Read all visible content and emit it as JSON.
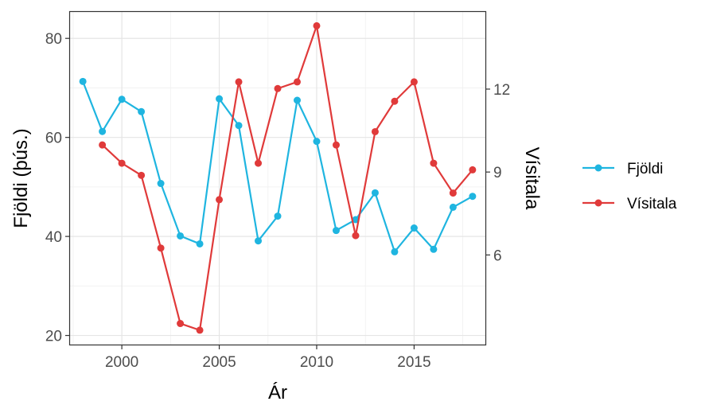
{
  "chart_data": {
    "type": "line",
    "xlabel": "Ár",
    "ylabel_left": "Fjöldi (þús.)",
    "ylabel_right": "Vísitala",
    "xlim": [
      1997.3,
      2018.7
    ],
    "ylim_left": [
      18,
      85.5
    ],
    "ylim_right": [
      2.73,
      14.82
    ],
    "x_ticks": [
      2000,
      2005,
      2010,
      2015
    ],
    "y_ticks_left": [
      20,
      40,
      60,
      80
    ],
    "y_ticks_right": [
      6,
      9,
      12
    ],
    "grid": true,
    "legend_position": "right",
    "series": [
      {
        "name": "Fjöldi",
        "axis": "left",
        "color": "#1fb5e0",
        "x": [
          1998,
          1999,
          2000,
          2001,
          2002,
          2003,
          2004,
          2005,
          2006,
          2007,
          2008,
          2009,
          2010,
          2011,
          2012,
          2013,
          2014,
          2015,
          2016,
          2017,
          2018
        ],
        "y": [
          71.3,
          61.2,
          67.7,
          65.2,
          50.7,
          40.1,
          38.5,
          67.8,
          62.4,
          39.1,
          44.1,
          67.5,
          59.2,
          41.2,
          43.4,
          48.8,
          36.9,
          41.7,
          37.4,
          45.9,
          48.1
        ]
      },
      {
        "name": "Vísitala",
        "axis": "right",
        "color": "#e03a3a",
        "x": [
          1999,
          2000,
          2001,
          2002,
          2003,
          2004,
          2005,
          2006,
          2007,
          2008,
          2009,
          2010,
          2011,
          2012,
          2013,
          2014,
          2015,
          2016,
          2017,
          2018
        ],
        "y": [
          9.98,
          9.32,
          8.88,
          6.25,
          3.52,
          3.28,
          8.0,
          12.26,
          9.32,
          12.02,
          12.26,
          14.29,
          9.98,
          6.7,
          10.46,
          11.56,
          12.26,
          9.32,
          8.24,
          9.08
        ]
      }
    ]
  }
}
